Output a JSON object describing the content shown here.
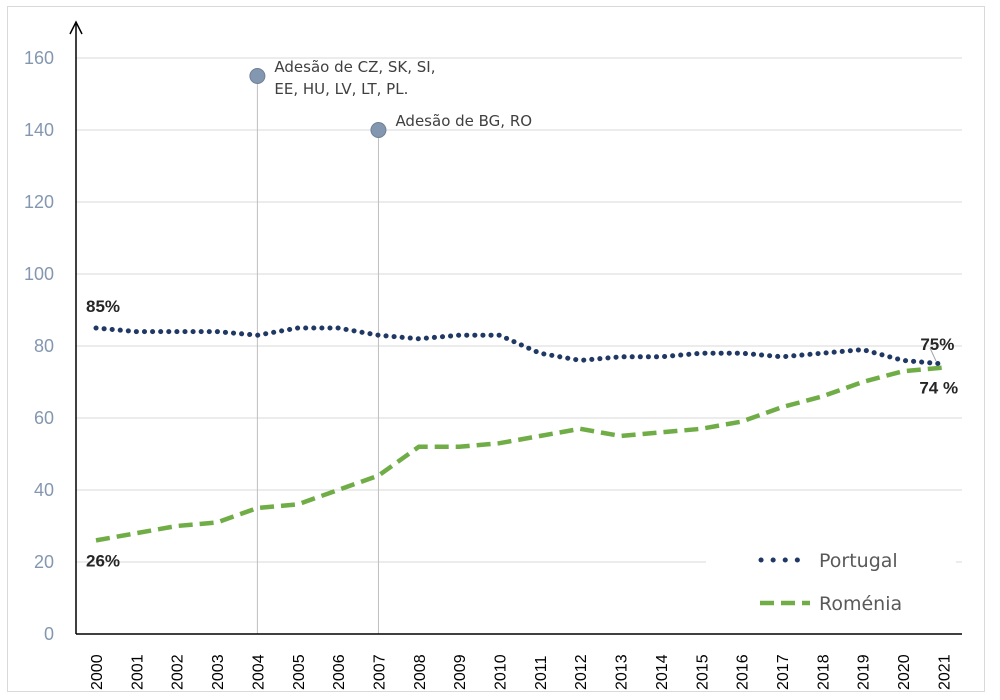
{
  "chart_data": {
    "type": "line",
    "title": "",
    "xlabel": "",
    "ylabel": "",
    "ylim": [
      0,
      160
    ],
    "yticks": [
      "0",
      "20",
      "40",
      "60",
      "80",
      "100",
      "120",
      "140",
      "160"
    ],
    "categories": [
      "2000",
      "2001",
      "2002",
      "2003",
      "2004",
      "2005",
      "2006",
      "2007",
      "2008",
      "2009",
      "2010",
      "2011",
      "2012",
      "2013",
      "2014",
      "2015",
      "2016",
      "2017",
      "2018",
      "2019",
      "2020",
      "2021"
    ],
    "grid": true,
    "legend_position": "bottom-right",
    "series": [
      {
        "name": "Portugal",
        "style": "dotted",
        "color": "#203864",
        "values": [
          85,
          84,
          84,
          84,
          83,
          85,
          85,
          83,
          82,
          83,
          83,
          78,
          76,
          77,
          77,
          78,
          78,
          77,
          78,
          79,
          76,
          75
        ]
      },
      {
        "name": "Roménia",
        "style": "dashed",
        "color": "#70ad47",
        "values": [
          26,
          28,
          30,
          31,
          35,
          36,
          40,
          44,
          52,
          52,
          53,
          55,
          57,
          55,
          56,
          57,
          59,
          63,
          66,
          70,
          73,
          74
        ]
      }
    ],
    "data_labels": [
      {
        "text": "85%",
        "series": "Portugal",
        "category": "2000"
      },
      {
        "text": "75%",
        "series": "Portugal",
        "category": "2021"
      },
      {
        "text": "26%",
        "series": "Roménia",
        "category": "2000"
      },
      {
        "text": "74 %",
        "series": "Roménia",
        "category": "2021"
      }
    ],
    "annotations": [
      {
        "category": "2004",
        "y": 155,
        "lines": [
          "Adesão de CZ, SK, SI,",
          "EE, HU, LV, LT, PL."
        ]
      },
      {
        "category": "2007",
        "y": 140,
        "lines": [
          "Adesão de BG, RO"
        ]
      }
    ],
    "colors": {
      "axis_text": "#8497b0",
      "grid": "#d9d9d9",
      "marker": "#8497b0"
    }
  }
}
